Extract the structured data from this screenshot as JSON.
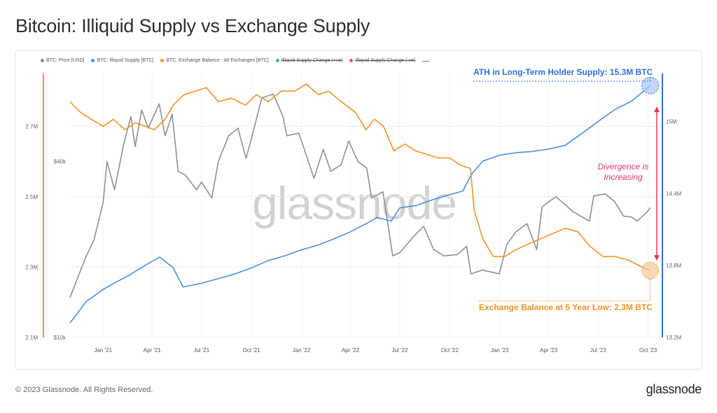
{
  "title": "Bitcoin: Illiquid Supply vs Exchange Supply",
  "legend": [
    {
      "label": "BTC: Price [USD]",
      "color": "#8a9299",
      "enabled": true
    },
    {
      "label": "BTC: Illiquid Supply [BTC]",
      "color": "#4a90e2",
      "enabled": true
    },
    {
      "label": "BTC: Exchange Balance - All Exchanges [BTC]",
      "color": "#f39325",
      "enabled": true
    },
    {
      "label": "Illiquid Supply Change (+ve)",
      "color": "#2bb5a5",
      "enabled": false
    },
    {
      "label": "Illiquid Supply Change (-ve)",
      "color": "#e05a4f",
      "enabled": false
    }
  ],
  "watermark": "glassnode",
  "annotations": {
    "ath": "ATH in Long-Term Holder Supply: 15.3M BTC",
    "exchange_low": "Exchange Balance at 5 Year Low: 2.3M BTC",
    "divergence": "Divergence is Increasing"
  },
  "footer": {
    "copyright": "© 2023 Glassnode. All Rights Reserved.",
    "logo": "glassnode"
  },
  "chart_data": {
    "type": "line",
    "x_ticks": [
      "Jan '21",
      "Apr '21",
      "Jul '21",
      "Oct '21",
      "Jan '22",
      "Apr '22",
      "Jul '22",
      "Oct '22",
      "Jan '23",
      "Apr '23",
      "Jul '23",
      "Oct '23"
    ],
    "x_range": [
      "2020-11",
      "2023-10"
    ],
    "axes": {
      "exchange_balance": {
        "ticks": [
          "2.1M",
          "2.3M",
          "2.5M",
          "2.7M"
        ],
        "range": [
          2.1,
          2.85
        ],
        "unit": "M BTC",
        "side": "left-outer"
      },
      "price": {
        "ticks": [
          "$10k",
          "$40k"
        ],
        "scale": "log",
        "range": [
          10000,
          80000
        ],
        "side": "left-inner"
      },
      "illiquid_supply": {
        "ticks": [
          "13.2M",
          "13.8M",
          "14.4M",
          "15M"
        ],
        "range": [
          13.2,
          15.4
        ],
        "unit": "M BTC",
        "side": "right"
      }
    },
    "series": [
      {
        "name": "BTC: Price [USD]",
        "color": "#8a9299",
        "axis": "price",
        "points": [
          [
            "2020-11-01",
            13700
          ],
          [
            "2020-11-15",
            16000
          ],
          [
            "2020-12-01",
            19000
          ],
          [
            "2020-12-15",
            21500
          ],
          [
            "2021-01-01",
            29000
          ],
          [
            "2021-01-08",
            40000
          ],
          [
            "2021-01-22",
            32000
          ],
          [
            "2021-02-08",
            46000
          ],
          [
            "2021-02-21",
            57000
          ],
          [
            "2021-03-01",
            45000
          ],
          [
            "2021-03-13",
            60000
          ],
          [
            "2021-03-25",
            52000
          ],
          [
            "2021-04-14",
            63000
          ],
          [
            "2021-04-25",
            49000
          ],
          [
            "2021-05-08",
            58000
          ],
          [
            "2021-05-19",
            37000
          ],
          [
            "2021-06-01",
            36000
          ],
          [
            "2021-06-22",
            32000
          ],
          [
            "2021-07-01",
            34000
          ],
          [
            "2021-07-20",
            30000
          ],
          [
            "2021-08-01",
            40000
          ],
          [
            "2021-08-20",
            49000
          ],
          [
            "2021-09-06",
            52000
          ],
          [
            "2021-09-21",
            41000
          ],
          [
            "2021-10-01",
            48000
          ],
          [
            "2021-10-20",
            66000
          ],
          [
            "2021-11-10",
            68000
          ],
          [
            "2021-11-28",
            57000
          ],
          [
            "2021-12-05",
            49000
          ],
          [
            "2021-12-27",
            50000
          ],
          [
            "2022-01-10",
            42000
          ],
          [
            "2022-01-24",
            35000
          ],
          [
            "2022-02-10",
            44000
          ],
          [
            "2022-02-24",
            37000
          ],
          [
            "2022-03-15",
            39000
          ],
          [
            "2022-03-29",
            47000
          ],
          [
            "2022-04-15",
            40000
          ],
          [
            "2022-05-01",
            38000
          ],
          [
            "2022-05-10",
            30000
          ],
          [
            "2022-05-31",
            31500
          ],
          [
            "2022-06-18",
            19000
          ],
          [
            "2022-07-01",
            19500
          ],
          [
            "2022-07-25",
            22000
          ],
          [
            "2022-08-14",
            24000
          ],
          [
            "2022-09-01",
            20000
          ],
          [
            "2022-09-20",
            19000
          ],
          [
            "2022-10-15",
            19200
          ],
          [
            "2022-11-01",
            20500
          ],
          [
            "2022-11-09",
            16500
          ],
          [
            "2022-11-30",
            17000
          ],
          [
            "2022-12-31",
            16500
          ],
          [
            "2023-01-14",
            20800
          ],
          [
            "2023-01-31",
            23000
          ],
          [
            "2023-02-20",
            24500
          ],
          [
            "2023-03-10",
            20000
          ],
          [
            "2023-03-20",
            28000
          ],
          [
            "2023-04-14",
            30300
          ],
          [
            "2023-05-01",
            28500
          ],
          [
            "2023-05-15",
            27000
          ],
          [
            "2023-06-15",
            25000
          ],
          [
            "2023-06-23",
            30500
          ],
          [
            "2023-07-14",
            31000
          ],
          [
            "2023-07-31",
            29200
          ],
          [
            "2023-08-17",
            26000
          ],
          [
            "2023-09-01",
            25800
          ],
          [
            "2023-09-11",
            25000
          ],
          [
            "2023-09-30",
            27000
          ],
          [
            "2023-10-05",
            27800
          ]
        ]
      },
      {
        "name": "BTC: Illiquid Supply [BTC]",
        "color": "#4a90e2",
        "axis": "illiquid_supply",
        "points": [
          [
            "2020-11-01",
            13.32
          ],
          [
            "2020-12-01",
            13.5
          ],
          [
            "2021-01-01",
            13.6
          ],
          [
            "2021-01-20",
            13.65
          ],
          [
            "2021-02-15",
            13.71
          ],
          [
            "2021-03-15",
            13.79
          ],
          [
            "2021-04-15",
            13.87
          ],
          [
            "2021-05-10",
            13.78
          ],
          [
            "2021-05-28",
            13.62
          ],
          [
            "2021-06-30",
            13.65
          ],
          [
            "2021-08-01",
            13.69
          ],
          [
            "2021-09-01",
            13.73
          ],
          [
            "2021-10-01",
            13.78
          ],
          [
            "2021-11-01",
            13.84
          ],
          [
            "2021-12-01",
            13.88
          ],
          [
            "2022-01-01",
            13.93
          ],
          [
            "2022-02-01",
            13.97
          ],
          [
            "2022-03-01",
            14.02
          ],
          [
            "2022-04-01",
            14.08
          ],
          [
            "2022-05-01",
            14.15
          ],
          [
            "2022-05-20",
            14.2
          ],
          [
            "2022-06-15",
            14.17
          ],
          [
            "2022-07-01",
            14.28
          ],
          [
            "2022-08-01",
            14.3
          ],
          [
            "2022-09-01",
            14.35
          ],
          [
            "2022-10-01",
            14.39
          ],
          [
            "2022-10-25",
            14.42
          ],
          [
            "2022-11-10",
            14.56
          ],
          [
            "2022-12-01",
            14.67
          ],
          [
            "2023-01-01",
            14.72
          ],
          [
            "2023-02-01",
            14.74
          ],
          [
            "2023-03-01",
            14.75
          ],
          [
            "2023-04-01",
            14.77
          ],
          [
            "2023-05-01",
            14.8
          ],
          [
            "2023-06-01",
            14.9
          ],
          [
            "2023-07-01",
            15.0
          ],
          [
            "2023-08-01",
            15.1
          ],
          [
            "2023-09-01",
            15.17
          ],
          [
            "2023-10-05",
            15.3
          ]
        ]
      },
      {
        "name": "BTC: Exchange Balance - All Exchanges [BTC]",
        "color": "#f39325",
        "axis": "exchange_balance",
        "points": [
          [
            "2020-11-01",
            2.77
          ],
          [
            "2020-11-20",
            2.74
          ],
          [
            "2020-12-10",
            2.72
          ],
          [
            "2021-01-01",
            2.7
          ],
          [
            "2021-01-20",
            2.72
          ],
          [
            "2021-02-10",
            2.69
          ],
          [
            "2021-03-01",
            2.71
          ],
          [
            "2021-03-20",
            2.7
          ],
          [
            "2021-04-05",
            2.69
          ],
          [
            "2021-04-25",
            2.72
          ],
          [
            "2021-05-10",
            2.76
          ],
          [
            "2021-05-30",
            2.79
          ],
          [
            "2021-06-20",
            2.8
          ],
          [
            "2021-07-10",
            2.81
          ],
          [
            "2021-08-01",
            2.77
          ],
          [
            "2021-08-25",
            2.78
          ],
          [
            "2021-09-20",
            2.76
          ],
          [
            "2021-10-10",
            2.79
          ],
          [
            "2021-11-01",
            2.77
          ],
          [
            "2021-11-25",
            2.8
          ],
          [
            "2021-12-20",
            2.8
          ],
          [
            "2022-01-10",
            2.82
          ],
          [
            "2022-02-01",
            2.79
          ],
          [
            "2022-02-20",
            2.8
          ],
          [
            "2022-03-15",
            2.77
          ],
          [
            "2022-04-10",
            2.74
          ],
          [
            "2022-04-30",
            2.69
          ],
          [
            "2022-05-15",
            2.72
          ],
          [
            "2022-06-01",
            2.7
          ],
          [
            "2022-06-20",
            2.63
          ],
          [
            "2022-07-10",
            2.65
          ],
          [
            "2022-07-30",
            2.63
          ],
          [
            "2022-08-20",
            2.62
          ],
          [
            "2022-09-10",
            2.61
          ],
          [
            "2022-10-01",
            2.61
          ],
          [
            "2022-10-20",
            2.59
          ],
          [
            "2022-11-08",
            2.58
          ],
          [
            "2022-11-15",
            2.46
          ],
          [
            "2022-12-01",
            2.38
          ],
          [
            "2022-12-20",
            2.33
          ],
          [
            "2023-01-10",
            2.33
          ],
          [
            "2023-02-01",
            2.35
          ],
          [
            "2023-03-01",
            2.37
          ],
          [
            "2023-04-01",
            2.39
          ],
          [
            "2023-05-01",
            2.41
          ],
          [
            "2023-05-25",
            2.4
          ],
          [
            "2023-06-15",
            2.36
          ],
          [
            "2023-07-10",
            2.33
          ],
          [
            "2023-08-01",
            2.33
          ],
          [
            "2023-08-25",
            2.32
          ],
          [
            "2023-09-20",
            2.3
          ],
          [
            "2023-10-05",
            2.29
          ]
        ]
      }
    ],
    "grid": true,
    "legend_position": "top-left"
  }
}
